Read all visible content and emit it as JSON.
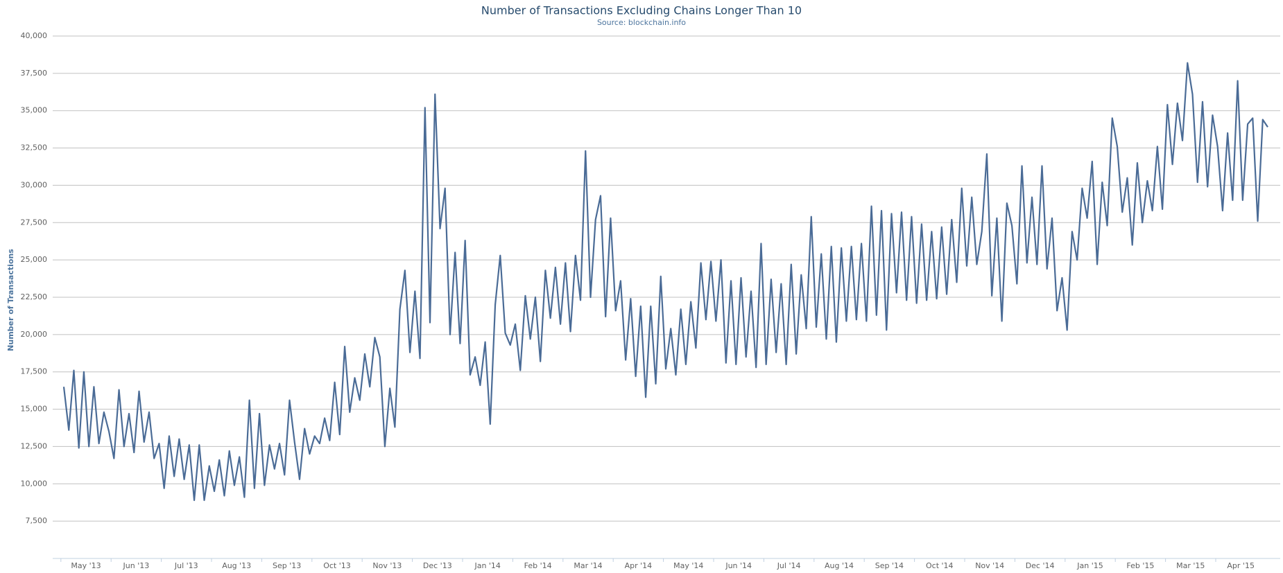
{
  "chart_data": {
    "type": "line",
    "title": "Number of Transactions Excluding Chains Longer Than 10",
    "subtitle": "Source: blockchain.info",
    "ylabel": "Number of Transactions",
    "color": "#4a6b96",
    "grid": true,
    "ylim": [
      5000,
      40000
    ],
    "yticks": [
      {
        "value": 7500,
        "label": "7,500"
      },
      {
        "value": 10000,
        "label": "10,000"
      },
      {
        "value": 12500,
        "label": "12,500"
      },
      {
        "value": 15000,
        "label": "15,000"
      },
      {
        "value": 17500,
        "label": "17,500"
      },
      {
        "value": 20000,
        "label": "20,000"
      },
      {
        "value": 22500,
        "label": "22,500"
      },
      {
        "value": 25000,
        "label": "25,000"
      },
      {
        "value": 27500,
        "label": "27,500"
      },
      {
        "value": 30000,
        "label": "30,000"
      },
      {
        "value": 32500,
        "label": "32,500"
      },
      {
        "value": 35000,
        "label": "35,000"
      },
      {
        "value": 37500,
        "label": "37,500"
      },
      {
        "value": 40000,
        "label": "40,000"
      }
    ],
    "xticks": [
      "May '13",
      "Jun '13",
      "Jul '13",
      "Aug '13",
      "Sep '13",
      "Oct '13",
      "Nov '13",
      "Dec '13",
      "Jan '14",
      "Feb '14",
      "Mar '14",
      "Apr '14",
      "May '14",
      "Jun '14",
      "Jul '14",
      "Aug '14",
      "Sep '14",
      "Oct '14",
      "Nov '14",
      "Dec '14",
      "Jan '15",
      "Feb '15",
      "Mar '15",
      "Apr '15"
    ],
    "values": [
      16500,
      13600,
      17600,
      12400,
      17500,
      12500,
      16500,
      12700,
      14800,
      13500,
      11700,
      16300,
      12500,
      14700,
      12100,
      16200,
      12800,
      14800,
      11700,
      12700,
      9700,
      13200,
      10500,
      13000,
      10300,
      12600,
      8900,
      12600,
      8900,
      11200,
      9500,
      11600,
      9200,
      12200,
      9900,
      11800,
      9100,
      15600,
      9700,
      14700,
      9900,
      12600,
      11000,
      12700,
      10600,
      15600,
      12800,
      10300,
      13700,
      12000,
      13200,
      12700,
      14400,
      12900,
      16800,
      13300,
      19200,
      14800,
      17100,
      15600,
      18700,
      16500,
      19800,
      18500,
      12500,
      16400,
      13800,
      21700,
      24300,
      18800,
      22900,
      18400,
      35200,
      20800,
      36100,
      27100,
      29800,
      20000,
      25500,
      19400,
      26300,
      17300,
      18500,
      16600,
      19500,
      14000,
      22000,
      25300,
      20100,
      19300,
      20700,
      17600,
      22600,
      19700,
      22500,
      18200,
      24300,
      21100,
      24500,
      20700,
      24800,
      20200,
      25300,
      22300,
      32300,
      22500,
      27700,
      29300,
      21200,
      27800,
      21600,
      23600,
      18300,
      22400,
      17200,
      21900,
      15800,
      21900,
      16700,
      23900,
      17700,
      20400,
      17300,
      21700,
      18000,
      22200,
      19100,
      24800,
      21000,
      24900,
      20900,
      25000,
      18100,
      23600,
      18000,
      23800,
      18500,
      22900,
      17800,
      26100,
      18000,
      23700,
      18800,
      23400,
      18000,
      24700,
      18700,
      24000,
      20400,
      27900,
      20500,
      25400,
      19700,
      25900,
      19500,
      25800,
      20900,
      25900,
      21000,
      26100,
      20900,
      28600,
      21300,
      28300,
      20300,
      28100,
      22800,
      28200,
      22300,
      27900,
      22100,
      27400,
      22300,
      26900,
      22400,
      27200,
      22700,
      27700,
      23500,
      29800,
      24600,
      29200,
      24700,
      26900,
      32100,
      22600,
      27800,
      20900,
      28800,
      27300,
      23400,
      31300,
      24800,
      29200,
      24700,
      31300,
      24400,
      27800,
      21600,
      23800,
      20300,
      26900,
      25000,
      29800,
      27800,
      31600,
      24700,
      30200,
      27300,
      34500,
      32600,
      28200,
      30500,
      26000,
      31500,
      27500,
      30300,
      28300,
      32600,
      28400,
      35400,
      31400,
      35500,
      33000,
      38200,
      36100,
      30200,
      35600,
      29900,
      34700,
      32600,
      28300,
      33500,
      29000,
      37000,
      29000,
      34100,
      34500,
      27600,
      34400,
      33900
    ]
  }
}
